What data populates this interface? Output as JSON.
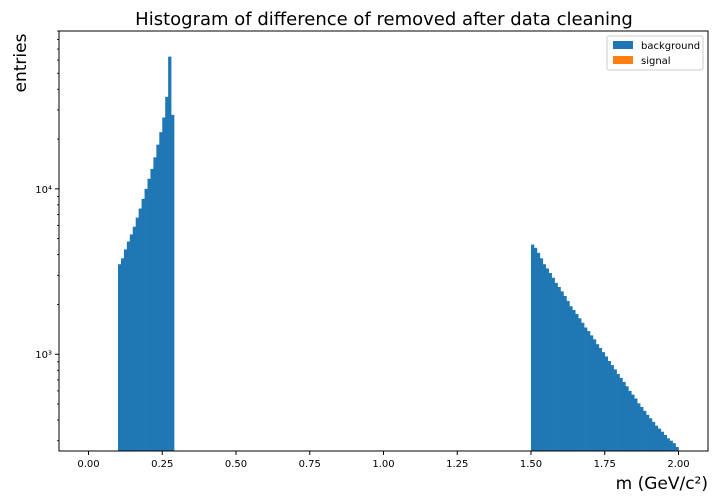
{
  "chart_data": {
    "type": "bar",
    "title": "Histogram of difference of removed after data cleaning",
    "xlabel": "m (GeV/c²)",
    "ylabel": "entries",
    "y_scale": "log",
    "xlim": [
      -0.1,
      2.1
    ],
    "ylim": [
      260,
      90000
    ],
    "x_ticks": [
      0.0,
      0.25,
      0.5,
      0.75,
      1.0,
      1.25,
      1.5,
      1.75,
      2.0
    ],
    "x_tick_labels": [
      "0.00",
      "0.25",
      "0.50",
      "0.75",
      "1.00",
      "1.25",
      "1.50",
      "1.75",
      "2.00"
    ],
    "y_ticks": [
      1000,
      10000
    ],
    "y_tick_labels": [
      "10³",
      "10⁴"
    ],
    "grid": false,
    "legend_position": "top-right",
    "series": [
      {
        "name": "background",
        "color": "#1f77b4",
        "bin_width": 0.01,
        "bins": [
          {
            "x": 0.1,
            "y": 3500
          },
          {
            "x": 0.11,
            "y": 3800
          },
          {
            "x": 0.12,
            "y": 4300
          },
          {
            "x": 0.13,
            "y": 4800
          },
          {
            "x": 0.14,
            "y": 5300
          },
          {
            "x": 0.15,
            "y": 5900
          },
          {
            "x": 0.16,
            "y": 6700
          },
          {
            "x": 0.17,
            "y": 7600
          },
          {
            "x": 0.18,
            "y": 8700
          },
          {
            "x": 0.19,
            "y": 10000
          },
          {
            "x": 0.2,
            "y": 11500
          },
          {
            "x": 0.21,
            "y": 13200
          },
          {
            "x": 0.22,
            "y": 15500
          },
          {
            "x": 0.23,
            "y": 18500
          },
          {
            "x": 0.24,
            "y": 22000
          },
          {
            "x": 0.25,
            "y": 27000
          },
          {
            "x": 0.26,
            "y": 36000
          },
          {
            "x": 0.27,
            "y": 63000
          },
          {
            "x": 0.28,
            "y": 28000
          },
          {
            "x": 1.5,
            "y": 4600
          },
          {
            "x": 1.51,
            "y": 4400
          },
          {
            "x": 1.52,
            "y": 4100
          },
          {
            "x": 1.53,
            "y": 3800
          },
          {
            "x": 1.54,
            "y": 3500
          },
          {
            "x": 1.55,
            "y": 3300
          },
          {
            "x": 1.56,
            "y": 3100
          },
          {
            "x": 1.57,
            "y": 2900
          },
          {
            "x": 1.58,
            "y": 2700
          },
          {
            "x": 1.59,
            "y": 2550
          },
          {
            "x": 1.6,
            "y": 2400
          },
          {
            "x": 1.61,
            "y": 2250
          },
          {
            "x": 1.62,
            "y": 2100
          },
          {
            "x": 1.63,
            "y": 1950
          },
          {
            "x": 1.64,
            "y": 1850
          },
          {
            "x": 1.65,
            "y": 1750
          },
          {
            "x": 1.66,
            "y": 1650
          },
          {
            "x": 1.67,
            "y": 1550
          },
          {
            "x": 1.68,
            "y": 1450
          },
          {
            "x": 1.69,
            "y": 1380
          },
          {
            "x": 1.7,
            "y": 1300
          },
          {
            "x": 1.71,
            "y": 1230
          },
          {
            "x": 1.72,
            "y": 1150
          },
          {
            "x": 1.73,
            "y": 1090
          },
          {
            "x": 1.74,
            "y": 1030
          },
          {
            "x": 1.75,
            "y": 970
          },
          {
            "x": 1.76,
            "y": 910
          },
          {
            "x": 1.77,
            "y": 860
          },
          {
            "x": 1.78,
            "y": 810
          },
          {
            "x": 1.79,
            "y": 760
          },
          {
            "x": 1.8,
            "y": 720
          },
          {
            "x": 1.81,
            "y": 680
          },
          {
            "x": 1.82,
            "y": 640
          },
          {
            "x": 1.83,
            "y": 600
          },
          {
            "x": 1.84,
            "y": 570
          },
          {
            "x": 1.85,
            "y": 540
          },
          {
            "x": 1.86,
            "y": 505
          },
          {
            "x": 1.87,
            "y": 480
          },
          {
            "x": 1.88,
            "y": 455
          },
          {
            "x": 1.89,
            "y": 430
          },
          {
            "x": 1.9,
            "y": 410
          },
          {
            "x": 1.91,
            "y": 390
          },
          {
            "x": 1.92,
            "y": 370
          },
          {
            "x": 1.93,
            "y": 355
          },
          {
            "x": 1.94,
            "y": 340
          },
          {
            "x": 1.95,
            "y": 325
          },
          {
            "x": 1.96,
            "y": 310
          },
          {
            "x": 1.97,
            "y": 300
          },
          {
            "x": 1.98,
            "y": 290
          },
          {
            "x": 1.99,
            "y": 275
          }
        ]
      },
      {
        "name": "signal",
        "color": "#ff7f0e",
        "bin_width": 0.01,
        "bins": []
      }
    ]
  }
}
